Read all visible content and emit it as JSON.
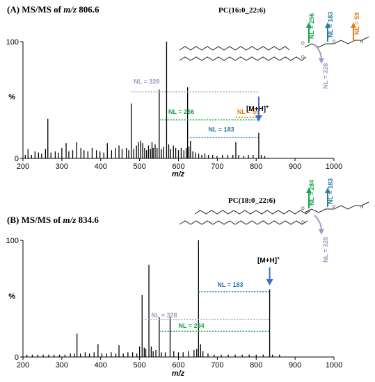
{
  "colors": {
    "gray": "#a897c7",
    "green": "#15a64a",
    "blue": "#2a7aa8",
    "orange": "#ea7a12",
    "arrow": "#3a6fc4",
    "peak": "#000000"
  },
  "chart_data": [
    {
      "type": "bar",
      "panel_label": "(A) MS/MS of m/z 806.6",
      "panel_prefix": "(A) MS/MS of ",
      "panel_mz_italic": "m/z",
      "panel_mz_value": " 806.6",
      "lipid": "PC(16:0_22:6)",
      "xlabel": "m/z",
      "ylabel": "%",
      "xlim": [
        200,
        1000
      ],
      "ylim": [
        0,
        100
      ],
      "x_ticks": [
        200,
        300,
        400,
        500,
        600,
        700,
        800,
        900,
        1000
      ],
      "y_ticks": [
        0,
        100
      ],
      "precursor_label": "[M+H]",
      "precursor_superscript": "+",
      "precursor_mz": 806.6,
      "peaks": [
        {
          "x": 206,
          "y": 3
        },
        {
          "x": 213,
          "y": 8
        },
        {
          "x": 222,
          "y": 3
        },
        {
          "x": 231,
          "y": 6
        },
        {
          "x": 240,
          "y": 5
        },
        {
          "x": 248,
          "y": 4
        },
        {
          "x": 258,
          "y": 8
        },
        {
          "x": 264,
          "y": 34
        },
        {
          "x": 272,
          "y": 5
        },
        {
          "x": 283,
          "y": 6
        },
        {
          "x": 291,
          "y": 5
        },
        {
          "x": 300,
          "y": 9
        },
        {
          "x": 311,
          "y": 13
        },
        {
          "x": 318,
          "y": 6
        },
        {
          "x": 328,
          "y": 7
        },
        {
          "x": 338,
          "y": 14
        },
        {
          "x": 349,
          "y": 9
        },
        {
          "x": 357,
          "y": 7
        },
        {
          "x": 367,
          "y": 6
        },
        {
          "x": 378,
          "y": 9
        },
        {
          "x": 389,
          "y": 7
        },
        {
          "x": 398,
          "y": 6
        },
        {
          "x": 408,
          "y": 5
        },
        {
          "x": 417,
          "y": 13
        },
        {
          "x": 428,
          "y": 7
        },
        {
          "x": 438,
          "y": 9
        },
        {
          "x": 447,
          "y": 11
        },
        {
          "x": 455,
          "y": 8
        },
        {
          "x": 466,
          "y": 9
        },
        {
          "x": 472,
          "y": 7
        },
        {
          "x": 478.5,
          "y": 47
        },
        {
          "x": 485,
          "y": 8
        },
        {
          "x": 492,
          "y": 11
        },
        {
          "x": 497,
          "y": 14
        },
        {
          "x": 503,
          "y": 15
        },
        {
          "x": 508,
          "y": 13
        },
        {
          "x": 513,
          "y": 9
        },
        {
          "x": 518,
          "y": 7
        },
        {
          "x": 523,
          "y": 11
        },
        {
          "x": 528,
          "y": 8
        },
        {
          "x": 532,
          "y": 14
        },
        {
          "x": 535,
          "y": 9
        },
        {
          "x": 540,
          "y": 12
        },
        {
          "x": 545,
          "y": 9
        },
        {
          "x": 550.5,
          "y": 59
        },
        {
          "x": 556,
          "y": 8
        },
        {
          "x": 562,
          "y": 10
        },
        {
          "x": 569.5,
          "y": 100
        },
        {
          "x": 575,
          "y": 12
        },
        {
          "x": 580,
          "y": 8
        },
        {
          "x": 587,
          "y": 11
        },
        {
          "x": 593,
          "y": 9
        },
        {
          "x": 600,
          "y": 7
        },
        {
          "x": 607,
          "y": 9
        },
        {
          "x": 614,
          "y": 7
        },
        {
          "x": 620,
          "y": 9
        },
        {
          "x": 623.5,
          "y": 61
        },
        {
          "x": 627,
          "y": 10
        },
        {
          "x": 631,
          "y": 15
        },
        {
          "x": 637,
          "y": 6
        },
        {
          "x": 644,
          "y": 5
        },
        {
          "x": 652,
          "y": 4
        },
        {
          "x": 660,
          "y": 3
        },
        {
          "x": 668,
          "y": 4
        },
        {
          "x": 677,
          "y": 3
        },
        {
          "x": 688,
          "y": 3
        },
        {
          "x": 699,
          "y": 2
        },
        {
          "x": 713,
          "y": 3
        },
        {
          "x": 727,
          "y": 3
        },
        {
          "x": 740,
          "y": 3
        },
        {
          "x": 747.6,
          "y": 14
        },
        {
          "x": 755,
          "y": 3
        },
        {
          "x": 768,
          "y": 2
        },
        {
          "x": 780,
          "y": 3
        },
        {
          "x": 792,
          "y": 3
        },
        {
          "x": 806.6,
          "y": 22
        },
        {
          "x": 813,
          "y": 3
        },
        {
          "x": 822,
          "y": 2
        }
      ],
      "neutral_losses": [
        {
          "label": "NL = 328",
          "from_mz": 478.5,
          "to_mz": 806.6,
          "y": 57,
          "color": "gray",
          "label_mz": 485,
          "label_y": 64
        },
        {
          "label": "NL = 256",
          "from_mz": 550.5,
          "to_mz": 806.6,
          "y": 33,
          "color": "green",
          "label_mz": 574,
          "label_y": 38
        },
        {
          "label": "NL = 59",
          "from_mz": 747.6,
          "to_mz": 806.6,
          "y": 35,
          "color": "orange",
          "label_mz": 751,
          "label_y": 38
        },
        {
          "label": "NL = 183",
          "from_mz": 623.5,
          "to_mz": 806.6,
          "y": 18,
          "color": "blue",
          "label_mz": 677,
          "label_y": 23
        }
      ],
      "structure_labels": [
        {
          "text": "NL = 256",
          "color": "green"
        },
        {
          "text": "NL = 183",
          "color": "blue"
        },
        {
          "text": "NL = 59",
          "color": "orange"
        },
        {
          "text": "NL = 328",
          "color": "gray"
        }
      ],
      "structure_atoms": {
        "o": "O",
        "p": "P",
        "n": "N"
      }
    },
    {
      "type": "bar",
      "panel_label": "(B) MS/MS of m/z 834.6",
      "panel_prefix": "(B) MS/MS of ",
      "panel_mz_italic": "m/z",
      "panel_mz_value": " 834.6",
      "lipid": "PC(18:0_22:6)",
      "xlabel": "m/z",
      "ylabel": "%",
      "xlim": [
        200,
        1000
      ],
      "ylim": [
        0,
        100
      ],
      "x_ticks": [
        200,
        300,
        400,
        500,
        600,
        700,
        800,
        900,
        1000
      ],
      "y_ticks": [
        0,
        100
      ],
      "precursor_label": "[M+H]",
      "precursor_superscript": "+",
      "precursor_mz": 834.6,
      "peaks": [
        {
          "x": 210,
          "y": 2
        },
        {
          "x": 224,
          "y": 2
        },
        {
          "x": 238,
          "y": 2
        },
        {
          "x": 252,
          "y": 2
        },
        {
          "x": 266,
          "y": 2
        },
        {
          "x": 280,
          "y": 2
        },
        {
          "x": 294,
          "y": 2
        },
        {
          "x": 308,
          "y": 2
        },
        {
          "x": 322,
          "y": 3
        },
        {
          "x": 332,
          "y": 3
        },
        {
          "x": 339,
          "y": 20
        },
        {
          "x": 348,
          "y": 3
        },
        {
          "x": 360,
          "y": 4
        },
        {
          "x": 371,
          "y": 3
        },
        {
          "x": 383,
          "y": 4
        },
        {
          "x": 393,
          "y": 11
        },
        {
          "x": 403,
          "y": 3
        },
        {
          "x": 415,
          "y": 3
        },
        {
          "x": 427,
          "y": 4
        },
        {
          "x": 439,
          "y": 3
        },
        {
          "x": 447,
          "y": 10
        },
        {
          "x": 458,
          "y": 3
        },
        {
          "x": 470,
          "y": 4
        },
        {
          "x": 482,
          "y": 4
        },
        {
          "x": 493,
          "y": 3
        },
        {
          "x": 500,
          "y": 9
        },
        {
          "x": 506.5,
          "y": 53
        },
        {
          "x": 512,
          "y": 8
        },
        {
          "x": 516,
          "y": 7
        },
        {
          "x": 524,
          "y": 79
        },
        {
          "x": 530,
          "y": 9
        },
        {
          "x": 535,
          "y": 5
        },
        {
          "x": 542,
          "y": 6
        },
        {
          "x": 550.5,
          "y": 34
        },
        {
          "x": 556,
          "y": 4
        },
        {
          "x": 566,
          "y": 4
        },
        {
          "x": 578.5,
          "y": 34
        },
        {
          "x": 588,
          "y": 5
        },
        {
          "x": 600,
          "y": 4
        },
        {
          "x": 612,
          "y": 4
        },
        {
          "x": 626,
          "y": 5
        },
        {
          "x": 640,
          "y": 6
        },
        {
          "x": 647,
          "y": 7
        },
        {
          "x": 651.6,
          "y": 100
        },
        {
          "x": 657,
          "y": 11
        },
        {
          "x": 663,
          "y": 5
        },
        {
          "x": 676,
          "y": 3
        },
        {
          "x": 692,
          "y": 2
        },
        {
          "x": 710,
          "y": 2
        },
        {
          "x": 728,
          "y": 2
        },
        {
          "x": 746,
          "y": 2
        },
        {
          "x": 764,
          "y": 2
        },
        {
          "x": 782,
          "y": 2
        },
        {
          "x": 800,
          "y": 2
        },
        {
          "x": 818,
          "y": 2
        },
        {
          "x": 834.6,
          "y": 58
        },
        {
          "x": 842,
          "y": 2
        },
        {
          "x": 860,
          "y": 2
        }
      ],
      "neutral_losses": [
        {
          "label": "NL = 328",
          "from_mz": 506.5,
          "to_mz": 834.6,
          "y": 32,
          "color": "gray",
          "label_mz": 530,
          "label_y": 34
        },
        {
          "label": "NL = 284",
          "from_mz": 550.5,
          "to_mz": 834.6,
          "y": 22,
          "color": "green",
          "label_mz": 600,
          "label_y": 25
        },
        {
          "label": "NL = 183",
          "from_mz": 651.6,
          "to_mz": 834.6,
          "y": 56,
          "color": "blue",
          "label_mz": 700,
          "label_y": 60
        }
      ],
      "structure_labels": [
        {
          "text": "NL = 284",
          "color": "green"
        },
        {
          "text": "NL = 183",
          "color": "blue"
        },
        {
          "text": "NL = 328",
          "color": "gray"
        }
      ],
      "structure_atoms": {
        "o": "O",
        "p": "P",
        "n": "N"
      }
    }
  ]
}
